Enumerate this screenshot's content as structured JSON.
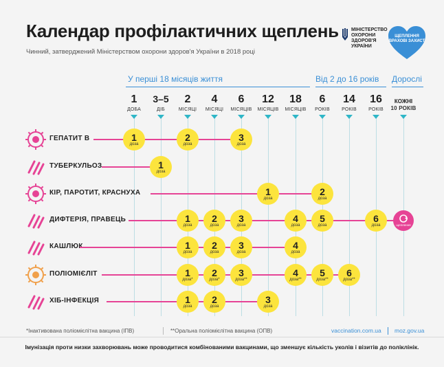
{
  "header": {
    "title": "Календар профілактичних щеплень",
    "subtitle": "Чинний, затверджений Міністерством охорони здоров'я України в 2018 році",
    "ministry": "МІНІСТЕРСТВО ОХОРОНИ ЗДОРОВ'Я УКРАЇНИ",
    "campaign_logo": "ЩЕПЛЕННЯ ВРАХОВІ ЗАХИСТ"
  },
  "sections": {
    "infants": "У перші 18 місяців життя",
    "children": "Від 2 до 16 років",
    "adults": "Дорослі"
  },
  "columns": [
    {
      "num": "1",
      "unit": "ДОБА"
    },
    {
      "num": "3–5",
      "unit": "ДІБ"
    },
    {
      "num": "2",
      "unit": "МІСЯЦІ"
    },
    {
      "num": "4",
      "unit": "МІСЯЦІ"
    },
    {
      "num": "6",
      "unit": "МІСЯЦІВ"
    },
    {
      "num": "12",
      "unit": "МІСЯЦІВ"
    },
    {
      "num": "18",
      "unit": "МІСЯЦІВ"
    },
    {
      "num": "6",
      "unit": "РОКІВ"
    },
    {
      "num": "14",
      "unit": "РОКІВ"
    },
    {
      "num": "16",
      "unit": "РОКІВ"
    },
    {
      "num": "КОЖНІ",
      "unit": "10 РОКІВ"
    }
  ],
  "dose_word": "доза",
  "diseases": [
    {
      "name": "ГЕПАТИТ В",
      "icon": "hepatitis-virus-icon",
      "doses": [
        {
          "col": 0,
          "n": "1"
        },
        {
          "col": 2,
          "n": "2"
        },
        {
          "col": 4,
          "n": "3"
        }
      ]
    },
    {
      "name": "ТУБЕРКУЛЬОЗ",
      "icon": "tuberculosis-bacteria-icon",
      "doses": [
        {
          "col": 1,
          "n": "1"
        }
      ]
    },
    {
      "name": "КІР, ПАРОТИТ, КРАСНУХА",
      "icon": "measles-virus-icon",
      "doses": [
        {
          "col": 5,
          "n": "1"
        },
        {
          "col": 7,
          "n": "2"
        }
      ]
    },
    {
      "name": "ДИФТЕРІЯ, ПРАВЕЦЬ",
      "icon": "diphtheria-bacteria-icon",
      "doses": [
        {
          "col": 2,
          "n": "1"
        },
        {
          "col": 3,
          "n": "2"
        },
        {
          "col": 4,
          "n": "3"
        },
        {
          "col": 6,
          "n": "4"
        },
        {
          "col": 7,
          "n": "5"
        },
        {
          "col": 9,
          "n": "6"
        }
      ]
    },
    {
      "name": "КАШЛЮК",
      "icon": "pertussis-bacteria-icon",
      "doses": [
        {
          "col": 2,
          "n": "1"
        },
        {
          "col": 3,
          "n": "2"
        },
        {
          "col": 4,
          "n": "3"
        },
        {
          "col": 6,
          "n": "4"
        }
      ]
    },
    {
      "name": "ПОЛІОМІЄЛІТ",
      "icon": "polio-virus-icon",
      "doses": [
        {
          "col": 2,
          "n": "1",
          "mark": "*"
        },
        {
          "col": 3,
          "n": "2",
          "mark": "*"
        },
        {
          "col": 4,
          "n": "3",
          "mark": "**"
        },
        {
          "col": 6,
          "n": "4",
          "mark": "**"
        },
        {
          "col": 7,
          "n": "5",
          "mark": "**"
        },
        {
          "col": 8,
          "n": "6",
          "mark": "**"
        }
      ]
    },
    {
      "name": "ХІБ-ІНФЕКЦІЯ",
      "icon": "hib-bacteria-icon",
      "doses": [
        {
          "col": 2,
          "n": "1"
        },
        {
          "col": 3,
          "n": "2"
        },
        {
          "col": 5,
          "n": "3"
        }
      ]
    }
  ],
  "adult_badge": "щеплення",
  "footer": {
    "note_ipv": "*Інактивована поліомієлітна вакцина (ІПВ)",
    "note_opv": "**Оральна поліомієлітна вакцина (ОПВ)",
    "link1": "vaccination.com.ua",
    "link2": "moz.gov.ua",
    "bottom": "Імунізація проти низки захворювань може проводитися комбінованими вакцинами, що зменшує кількість уколів і візитів до поліклінік."
  },
  "colors": {
    "accent_blue": "#3a8fd6",
    "pink": "#e64395",
    "yellow": "#fce43d",
    "teal": "#2fb6c7"
  }
}
